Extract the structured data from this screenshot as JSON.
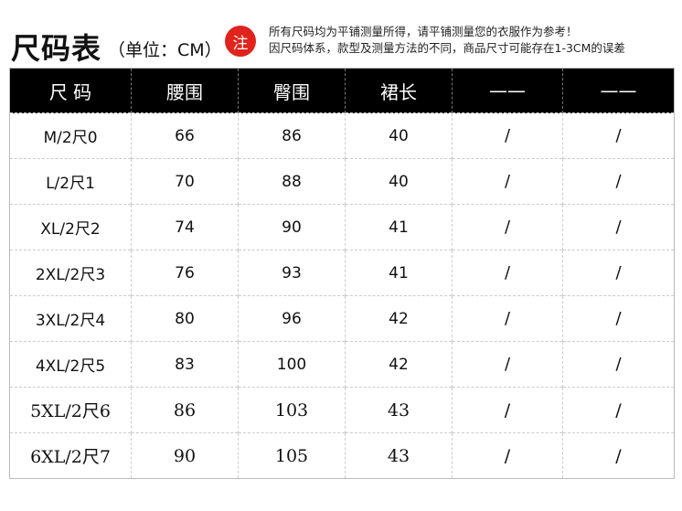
{
  "title": "尺码表",
  "unit": "（单位：CM）",
  "note_badge": "注",
  "notes": [
    "所有尺码均为平铺测量所得，请平铺测量您的衣服作为参考！",
    "因尺码体系，款型及测量方法的不同，商品尺寸可能存在1-3CM的误差"
  ],
  "colors": {
    "header_bg": "#000000",
    "badge": "#e0231c"
  },
  "table": {
    "headers": [
      "尺 码",
      "腰围",
      "臀围",
      "裙长",
      "——",
      "——"
    ],
    "rows": [
      [
        "M/2尺0",
        "66",
        "86",
        "40",
        "/",
        "/"
      ],
      [
        "L/2尺1",
        "70",
        "88",
        "40",
        "/",
        "/"
      ],
      [
        "XL/2尺2",
        "74",
        "90",
        "41",
        "/",
        "/"
      ],
      [
        "2XL/2尺3",
        "76",
        "93",
        "41",
        "/",
        "/"
      ],
      [
        "3XL/2尺4",
        "80",
        "96",
        "42",
        "/",
        "/"
      ],
      [
        "4XL/2尺5",
        "83",
        "100",
        "42",
        "/",
        "/"
      ],
      [
        "5XL/2尺6",
        "86",
        "103",
        "43",
        "/",
        "/"
      ],
      [
        "6XL/2尺7",
        "90",
        "105",
        "43",
        "/",
        "/"
      ]
    ]
  }
}
